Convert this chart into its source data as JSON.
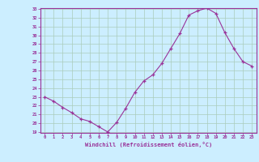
{
  "xlabel": "Windchill (Refroidissement éolien,°C)",
  "x": [
    0,
    1,
    2,
    3,
    4,
    5,
    6,
    7,
    8,
    9,
    10,
    11,
    12,
    13,
    14,
    15,
    16,
    17,
    18,
    19,
    20,
    21,
    22,
    23
  ],
  "y": [
    23.0,
    22.5,
    21.8,
    21.2,
    20.5,
    20.2,
    19.6,
    19.0,
    20.1,
    21.7,
    23.5,
    24.8,
    25.5,
    26.8,
    28.5,
    30.2,
    32.3,
    32.8,
    33.1,
    32.5,
    30.3,
    28.5,
    27.0,
    26.5
  ],
  "ylim": [
    19,
    33
  ],
  "xlim": [
    -0.5,
    23.5
  ],
  "yticks": [
    19,
    20,
    21,
    22,
    23,
    24,
    25,
    26,
    27,
    28,
    29,
    30,
    31,
    32,
    33
  ],
  "xticks": [
    0,
    1,
    2,
    3,
    4,
    5,
    6,
    7,
    8,
    9,
    10,
    11,
    12,
    13,
    14,
    15,
    16,
    17,
    18,
    19,
    20,
    21,
    22,
    23
  ],
  "line_color": "#993399",
  "marker": "+",
  "bg_color": "#cceeff",
  "grid_color": "#aaccbb",
  "spine_color": "#993399",
  "label_color": "#993399",
  "tick_color": "#993399"
}
